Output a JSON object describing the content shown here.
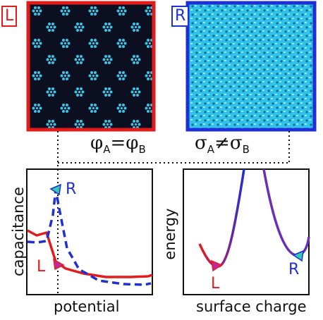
{
  "panels": {
    "left_tag": "L",
    "right_tag": "R"
  },
  "equations": {
    "phi": {
      "symbol": "φ",
      "sub_a": "A",
      "equals": "=",
      "sub_b": "B"
    },
    "sigma": {
      "symbol": "σ",
      "sub_a": "A",
      "not_equals": "≠",
      "sub_b": "B"
    }
  },
  "capacitance_plot": {
    "ylabel": "capacitance",
    "xlabel": "potential",
    "point_R_label": "R",
    "point_L_label": "L"
  },
  "energy_plot": {
    "ylabel": "energy",
    "xlabel": "surface charge",
    "point_L_label": "L",
    "point_R_label": "R"
  },
  "colors": {
    "red": "#e41b1b",
    "blue": "#1f2fd6",
    "cyan": "#2ec8e6",
    "magenta": "#c02aa0",
    "teal_marker": "#35c9b3"
  }
}
